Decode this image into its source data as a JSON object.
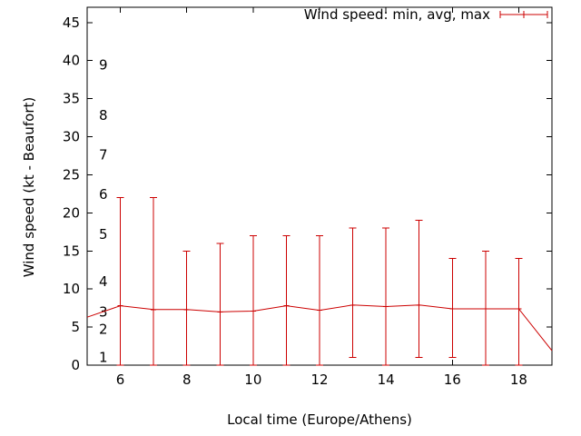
{
  "chart_data": {
    "type": "line",
    "title": "",
    "xlabel": "Local time (Europe/Athens)",
    "ylabel": "Wind speed (kt - Beaufort)",
    "legend_label": "Wind speed: min, avg, max",
    "legend_position": "top-right",
    "grid": false,
    "xlim": [
      5,
      19
    ],
    "ylim": [
      0,
      47
    ],
    "xticks": [
      6,
      8,
      10,
      12,
      14,
      16,
      18
    ],
    "yticks": [
      0,
      5,
      10,
      15,
      20,
      25,
      30,
      35,
      40,
      45
    ],
    "beaufort_scale": [
      {
        "bft": "1",
        "kt": 1.0
      },
      {
        "bft": "2",
        "kt": 4.7
      },
      {
        "bft": "3",
        "kt": 7.0
      },
      {
        "bft": "4",
        "kt": 11.0
      },
      {
        "bft": "5",
        "kt": 17.2
      },
      {
        "bft": "6",
        "kt": 22.4
      },
      {
        "bft": "7",
        "kt": 27.6
      },
      {
        "bft": "8",
        "kt": 32.8
      },
      {
        "bft": "9",
        "kt": 39.4
      }
    ],
    "series": [
      {
        "name": "avg",
        "x": [
          5,
          6,
          7,
          8,
          9,
          10,
          11,
          12,
          13,
          14,
          15,
          16,
          17,
          18,
          19
        ],
        "y": [
          6.3,
          7.8,
          7.3,
          7.3,
          7.0,
          7.1,
          7.8,
          7.2,
          7.9,
          7.7,
          7.9,
          7.4,
          7.4,
          7.4,
          1.9
        ]
      }
    ],
    "errorbars": {
      "x": [
        6,
        7,
        8,
        9,
        10,
        11,
        12,
        13,
        14,
        15,
        16,
        17,
        18
      ],
      "min": [
        0,
        0,
        0,
        0,
        0,
        0,
        0,
        1,
        0,
        1,
        1,
        0,
        0
      ],
      "max": [
        22,
        22,
        15,
        16,
        17,
        17,
        17,
        18,
        18,
        19,
        14,
        15,
        14
      ]
    },
    "colors": {
      "line": "#cc0000",
      "axis": "#000000",
      "text": "#000000",
      "background": "#ffffff"
    }
  }
}
